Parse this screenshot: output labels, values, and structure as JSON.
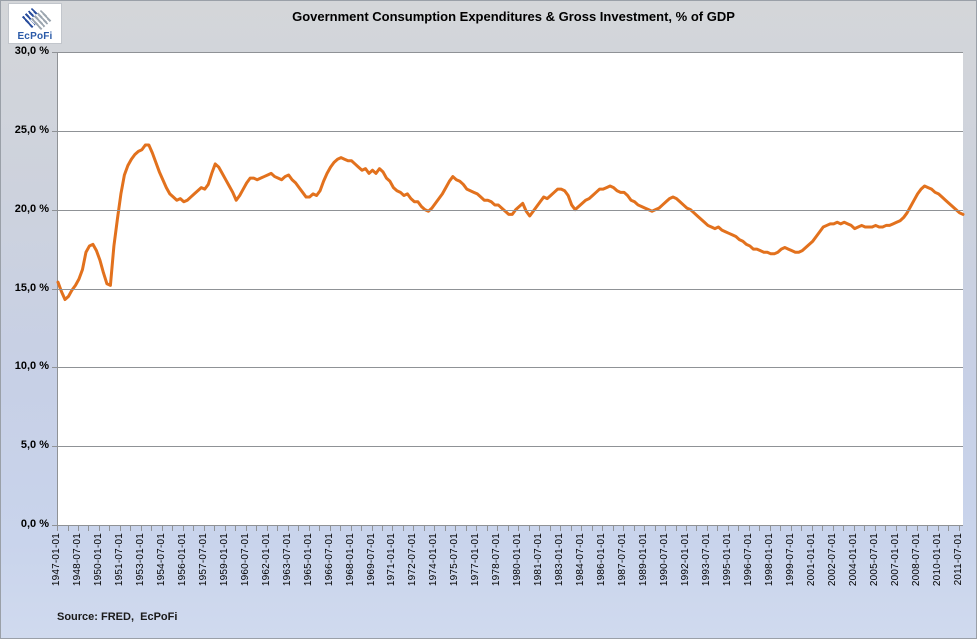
{
  "header": {
    "title": "Government Consumption Expenditures & Gross Investment, % of GDP",
    "logo_text": "EcPoFi"
  },
  "footer": {
    "source_label": "Source: FRED,  EcPoFi"
  },
  "colors": {
    "line": "#E2711D",
    "grid": "#8f9296",
    "plot_background": "#ffffff",
    "page_background_top": "#d4d6d9",
    "page_background_bottom": "#d0daee",
    "logo_blue": "#2a5aa8"
  },
  "chart_data": {
    "type": "line",
    "title": "Government Consumption Expenditures & Gross Investment, % of GDP",
    "xlabel": "",
    "ylabel": "",
    "ylim": [
      0,
      30
    ],
    "grid": "horizontal",
    "legend": "none",
    "x_frequency": "quarterly",
    "x_start": "1947-01-01",
    "x_end": "2011-10-01",
    "x_label_every_n_quarters": 6,
    "x_minor_tick_every_n_quarters": 3,
    "y_ticks": [
      {
        "label": "30,0 %",
        "value": 30
      },
      {
        "label": "25,0 %",
        "value": 25
      },
      {
        "label": "20,0 %",
        "value": 20
      },
      {
        "label": "15,0 %",
        "value": 15
      },
      {
        "label": "10,0 %",
        "value": 10
      },
      {
        "label": "5,0 %",
        "value": 5
      },
      {
        "label": "0,0 %",
        "value": 0
      }
    ],
    "x_tick_labels": [
      "1947-01-01",
      "1948-07-01",
      "1950-01-01",
      "1951-07-01",
      "1953-01-01",
      "1954-07-01",
      "1956-01-01",
      "1957-07-01",
      "1959-01-01",
      "1960-07-01",
      "1962-01-01",
      "1963-07-01",
      "1965-01-01",
      "1966-07-01",
      "1968-01-01",
      "1969-07-01",
      "1971-01-01",
      "1972-07-01",
      "1974-01-01",
      "1975-07-01",
      "1977-01-01",
      "1978-07-01",
      "1980-01-01",
      "1981-07-01",
      "1983-01-01",
      "1984-07-01",
      "1986-01-01",
      "1987-07-01",
      "1989-01-01",
      "1990-07-01",
      "1992-01-01",
      "1993-07-01",
      "1995-01-01",
      "1996-07-01",
      "1998-01-01",
      "1999-07-01",
      "2001-01-01",
      "2002-07-01",
      "2004-01-01",
      "2005-07-01",
      "2007-01-01",
      "2008-07-01",
      "2010-01-01",
      "2011-07-01"
    ],
    "series": [
      {
        "name": "Government Consumption Expenditures & Gross Investment, % of GDP",
        "color": "#E2711D",
        "values": [
          15.4,
          14.8,
          14.3,
          14.5,
          14.9,
          15.2,
          15.6,
          16.2,
          17.3,
          17.7,
          17.8,
          17.4,
          16.8,
          16.0,
          15.3,
          15.2,
          17.7,
          19.4,
          21.0,
          22.2,
          22.8,
          23.2,
          23.5,
          23.7,
          23.8,
          24.1,
          24.1,
          23.6,
          23.0,
          22.4,
          21.9,
          21.4,
          21.0,
          20.8,
          20.6,
          20.7,
          20.5,
          20.6,
          20.8,
          21.0,
          21.2,
          21.4,
          21.3,
          21.6,
          22.3,
          22.9,
          22.7,
          22.3,
          21.9,
          21.5,
          21.1,
          20.6,
          20.9,
          21.3,
          21.7,
          22.0,
          22.0,
          21.9,
          22.0,
          22.1,
          22.2,
          22.3,
          22.1,
          22.0,
          21.9,
          22.1,
          22.2,
          21.9,
          21.7,
          21.4,
          21.1,
          20.8,
          20.8,
          21.0,
          20.9,
          21.2,
          21.8,
          22.3,
          22.7,
          23.0,
          23.2,
          23.3,
          23.2,
          23.1,
          23.1,
          22.9,
          22.7,
          22.5,
          22.6,
          22.3,
          22.5,
          22.3,
          22.6,
          22.4,
          22.0,
          21.8,
          21.4,
          21.2,
          21.1,
          20.9,
          21.0,
          20.7,
          20.5,
          20.5,
          20.2,
          20.0,
          19.9,
          20.1,
          20.4,
          20.7,
          21.0,
          21.4,
          21.8,
          22.1,
          21.9,
          21.8,
          21.6,
          21.3,
          21.2,
          21.1,
          21.0,
          20.8,
          20.6,
          20.6,
          20.5,
          20.3,
          20.3,
          20.1,
          19.9,
          19.7,
          19.7,
          20.0,
          20.2,
          20.4,
          19.9,
          19.6,
          19.9,
          20.2,
          20.5,
          20.8,
          20.7,
          20.9,
          21.1,
          21.3,
          21.3,
          21.2,
          20.9,
          20.3,
          20.0,
          20.2,
          20.4,
          20.6,
          20.7,
          20.9,
          21.1,
          21.3,
          21.3,
          21.4,
          21.5,
          21.4,
          21.2,
          21.1,
          21.1,
          20.9,
          20.6,
          20.5,
          20.3,
          20.2,
          20.1,
          20.0,
          19.9,
          20.0,
          20.1,
          20.3,
          20.5,
          20.7,
          20.8,
          20.7,
          20.5,
          20.3,
          20.1,
          20.0,
          19.8,
          19.6,
          19.4,
          19.2,
          19.0,
          18.9,
          18.8,
          18.9,
          18.7,
          18.6,
          18.5,
          18.4,
          18.3,
          18.1,
          18.0,
          17.8,
          17.7,
          17.5,
          17.5,
          17.4,
          17.3,
          17.3,
          17.2,
          17.2,
          17.3,
          17.5,
          17.6,
          17.5,
          17.4,
          17.3,
          17.3,
          17.4,
          17.6,
          17.8,
          18.0,
          18.3,
          18.6,
          18.9,
          19.0,
          19.1,
          19.1,
          19.2,
          19.1,
          19.2,
          19.1,
          19.0,
          18.8,
          18.9,
          19.0,
          18.9,
          18.9,
          18.9,
          19.0,
          18.9,
          18.9,
          19.0,
          19.0,
          19.1,
          19.2,
          19.3,
          19.5,
          19.8,
          20.2,
          20.6,
          21.0,
          21.3,
          21.5,
          21.4,
          21.3,
          21.1,
          21.0,
          20.8,
          20.6,
          20.4,
          20.2,
          20.0,
          19.8,
          19.7
        ]
      }
    ]
  }
}
